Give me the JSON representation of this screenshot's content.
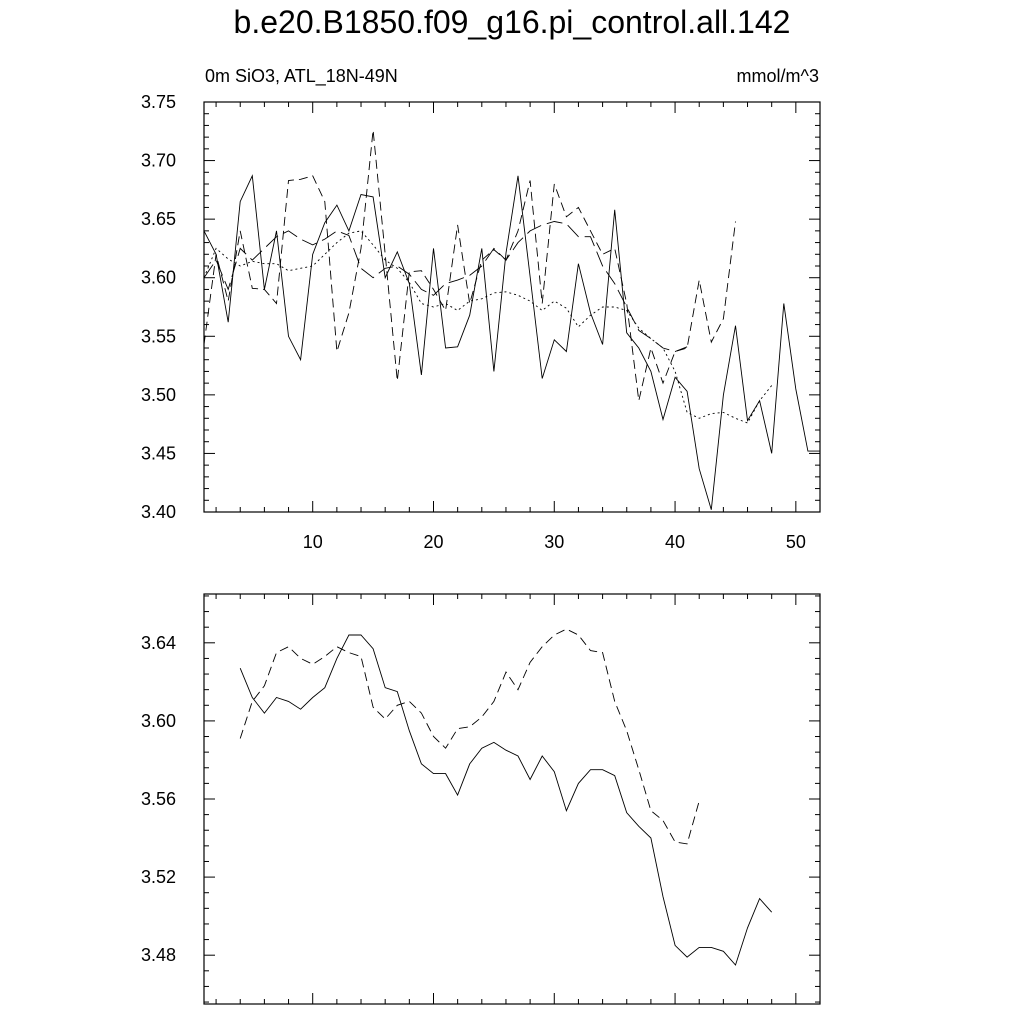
{
  "title": "b.e20.B1850.f09_g16.pi_control.all.142",
  "subtitle_left": "0m SiO3, ATL_18N-49N",
  "subtitle_right": "mmol/m^3",
  "chart_data": [
    {
      "type": "line",
      "xlim": [
        1,
        52
      ],
      "ylim": [
        3.4,
        3.75
      ],
      "x_ticks": [
        10,
        20,
        30,
        40,
        50
      ],
      "y_ticks": [
        "3.40",
        "3.45",
        "3.50",
        "3.55",
        "3.60",
        "3.65",
        "3.70",
        "3.75"
      ],
      "series": [
        {
          "style": "solid",
          "x": [
            1,
            2,
            3,
            4,
            5,
            6,
            7,
            8,
            9,
            10,
            11,
            12,
            13,
            14,
            15,
            16,
            17,
            18,
            19,
            20,
            21,
            22,
            23,
            24,
            25,
            26,
            27,
            28,
            29,
            30,
            31,
            32,
            33,
            34,
            35,
            36,
            37,
            38,
            39,
            40,
            41,
            42,
            43,
            44,
            45,
            46,
            47,
            48,
            49,
            50,
            51,
            52
          ],
          "values": [
            3.64,
            3.62,
            3.562,
            3.665,
            3.687,
            3.59,
            3.64,
            3.55,
            3.53,
            3.62,
            3.647,
            3.662,
            3.64,
            3.671,
            3.669,
            3.6,
            3.622,
            3.595,
            3.517,
            3.625,
            3.54,
            3.541,
            3.568,
            3.625,
            3.52,
            3.621,
            3.687,
            3.601,
            3.514,
            3.547,
            3.537,
            3.612,
            3.57,
            3.543,
            3.658,
            3.553,
            3.54,
            3.52,
            3.479,
            3.515,
            3.503,
            3.437,
            3.402,
            3.5,
            3.559,
            3.478,
            3.495,
            3.45,
            3.578,
            3.505,
            3.452,
            3.452
          ]
        },
        {
          "style": "dashed",
          "x": [
            1,
            2,
            3,
            4,
            5,
            6,
            7,
            8,
            9,
            10,
            11,
            12,
            13,
            14,
            15,
            16,
            17,
            18,
            19,
            20,
            21,
            22,
            23,
            24,
            25,
            26,
            27,
            28,
            29,
            30,
            31,
            32,
            33,
            34,
            35,
            36,
            37,
            38,
            39,
            40,
            41,
            42,
            43,
            44,
            45
          ],
          "values": [
            3.543,
            3.62,
            3.58,
            3.64,
            3.591,
            3.59,
            3.578,
            3.683,
            3.684,
            3.687,
            3.665,
            3.537,
            3.57,
            3.625,
            3.726,
            3.62,
            3.512,
            3.605,
            3.606,
            3.59,
            3.572,
            3.645,
            3.578,
            3.615,
            3.624,
            3.615,
            3.64,
            3.683,
            3.578,
            3.68,
            3.652,
            3.66,
            3.64,
            3.62,
            3.625,
            3.578,
            3.495,
            3.54,
            3.51,
            3.537,
            3.54,
            3.598,
            3.545,
            3.565,
            3.648
          ]
        },
        {
          "style": "long-dashed",
          "x": [
            1,
            2,
            3,
            4,
            5,
            6,
            7,
            8,
            9,
            10,
            11,
            12,
            13,
            14,
            15,
            16,
            17,
            18,
            19,
            20,
            21,
            22,
            23,
            24,
            25,
            26,
            27,
            28,
            29,
            30,
            31,
            32,
            33,
            34,
            35,
            36,
            37,
            38,
            39,
            40,
            41
          ],
          "values": [
            3.6,
            3.615,
            3.59,
            3.625,
            3.615,
            3.625,
            3.635,
            3.64,
            3.633,
            3.628,
            3.633,
            3.64,
            3.636,
            3.608,
            3.6,
            3.608,
            3.61,
            3.603,
            3.59,
            3.585,
            3.595,
            3.598,
            3.602,
            3.61,
            3.625,
            3.615,
            3.63,
            3.64,
            3.645,
            3.648,
            3.646,
            3.635,
            3.635,
            3.61,
            3.595,
            3.575,
            3.555,
            3.548,
            3.54,
            3.537,
            3.541
          ]
        },
        {
          "style": "dotted",
          "x": [
            1,
            2,
            3,
            4,
            5,
            6,
            7,
            8,
            9,
            10,
            11,
            12,
            13,
            14,
            15,
            16,
            17,
            18,
            19,
            20,
            21,
            22,
            23,
            24,
            25,
            26,
            27,
            28,
            29,
            30,
            31,
            32,
            33,
            34,
            35,
            36,
            37,
            38,
            39,
            40,
            41,
            42,
            43,
            44,
            45,
            46,
            47,
            48
          ],
          "values": [
            3.6,
            3.625,
            3.616,
            3.61,
            3.614,
            3.612,
            3.612,
            3.606,
            3.608,
            3.61,
            3.62,
            3.63,
            3.638,
            3.64,
            3.628,
            3.615,
            3.608,
            3.596,
            3.578,
            3.575,
            3.578,
            3.572,
            3.58,
            3.582,
            3.587,
            3.588,
            3.585,
            3.58,
            3.572,
            3.58,
            3.574,
            3.558,
            3.568,
            3.575,
            3.575,
            3.572,
            3.557,
            3.548,
            3.54,
            3.52,
            3.485,
            3.48,
            3.484,
            3.485,
            3.48,
            3.476,
            3.495,
            3.508
          ]
        }
      ]
    },
    {
      "type": "line",
      "xlim": [
        1,
        52
      ],
      "ylim": [
        3.455,
        3.665
      ],
      "x_ticks": [
        10,
        20,
        30,
        40,
        50
      ],
      "y_ticks": [
        "3.48",
        "3.52",
        "3.56",
        "3.60",
        "3.64"
      ],
      "series": [
        {
          "style": "solid",
          "x": [
            4,
            5,
            6,
            7,
            8,
            9,
            10,
            11,
            12,
            13,
            14,
            15,
            16,
            17,
            18,
            19,
            20,
            21,
            22,
            23,
            24,
            25,
            26,
            27,
            28,
            29,
            30,
            31,
            32,
            33,
            34,
            35,
            36,
            37,
            38,
            39,
            40,
            41,
            42,
            43,
            44,
            45,
            46,
            47,
            48
          ],
          "values": [
            3.627,
            3.612,
            3.604,
            3.612,
            3.61,
            3.606,
            3.612,
            3.617,
            3.632,
            3.644,
            3.644,
            3.637,
            3.617,
            3.615,
            3.595,
            3.578,
            3.573,
            3.573,
            3.562,
            3.578,
            3.586,
            3.589,
            3.585,
            3.582,
            3.57,
            3.582,
            3.574,
            3.554,
            3.568,
            3.575,
            3.575,
            3.572,
            3.553,
            3.546,
            3.54,
            3.51,
            3.485,
            3.479,
            3.484,
            3.484,
            3.482,
            3.475,
            3.494,
            3.509,
            3.502
          ]
        },
        {
          "style": "dashed",
          "x": [
            4,
            5,
            6,
            7,
            8,
            9,
            10,
            11,
            12,
            13,
            14,
            15,
            16,
            17,
            18,
            19,
            20,
            21,
            22,
            23,
            24,
            25,
            26,
            27,
            28,
            29,
            30,
            31,
            32,
            33,
            34,
            35,
            36,
            37,
            38,
            39,
            40,
            41,
            42
          ],
          "values": [
            3.591,
            3.61,
            3.618,
            3.635,
            3.638,
            3.632,
            3.629,
            3.633,
            3.638,
            3.635,
            3.633,
            3.607,
            3.601,
            3.608,
            3.61,
            3.604,
            3.592,
            3.586,
            3.596,
            3.597,
            3.602,
            3.61,
            3.625,
            3.616,
            3.63,
            3.638,
            3.644,
            3.647,
            3.644,
            3.636,
            3.635,
            3.61,
            3.595,
            3.575,
            3.554,
            3.549,
            3.538,
            3.537,
            3.559
          ]
        }
      ]
    }
  ]
}
